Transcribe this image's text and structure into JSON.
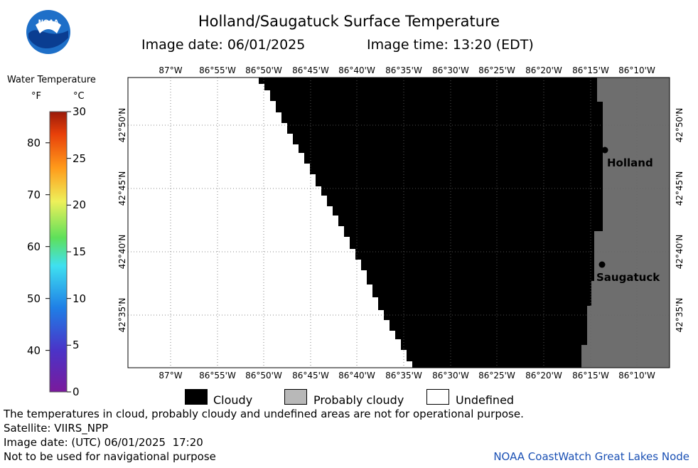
{
  "header": {
    "title": "Holland/Saugatuck Surface Temperature",
    "image_date": "Image date: 06/01/2025",
    "image_time": "Image time: 13:20 (EDT)"
  },
  "logo": {
    "text": "NOAA"
  },
  "legend": {
    "title": "Water Temperature",
    "unit_f": "°F",
    "unit_c": "°C",
    "f_ticks": [
      "80",
      "70",
      "60",
      "50",
      "40"
    ],
    "f_values": [
      80,
      70,
      60,
      50,
      40
    ],
    "c_ticks": [
      "30",
      "25",
      "20",
      "15",
      "10",
      "5",
      "0"
    ],
    "c_values": [
      30,
      25,
      20,
      15,
      10,
      5,
      0
    ],
    "c_range": [
      0,
      30
    ]
  },
  "map": {
    "lon_labels": [
      "87°W",
      "86°55'W",
      "86°50'W",
      "86°45'W",
      "86°40'W",
      "86°35'W",
      "86°30'W",
      "86°25'W",
      "86°20'W",
      "86°15'W",
      "86°10'W"
    ],
    "lat_labels": [
      "42°50'N",
      "42°45'N",
      "42°40'N",
      "42°35'N"
    ],
    "places": [
      {
        "name": "Holland"
      },
      {
        "name": "Saugatuck"
      }
    ],
    "colors": {
      "cloudy": "#000000",
      "probably_cloudy": "#6e6e6e",
      "undefined": "#ffffff"
    }
  },
  "key": {
    "cloudy": "Cloudy",
    "probably_cloudy": "Probably cloudy",
    "undefined": "Undefined"
  },
  "footer": {
    "note": "The temperatures in cloud, probably cloudy and undefined areas are not for operational purpose.",
    "satellite": "Satellite: VIIRS_NPP",
    "utc_date": "Image date: (UTC) 06/01/2025  17:20",
    "nav_warning": "Not to be used for navigational purpose",
    "credit": "NOAA CoastWatch Great Lakes Node"
  }
}
